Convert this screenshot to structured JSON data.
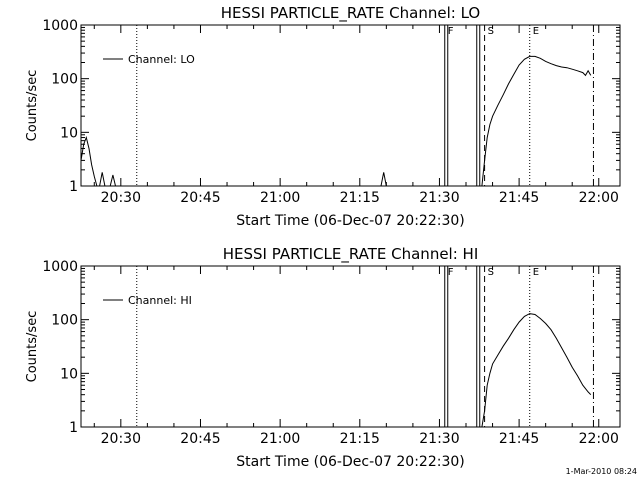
{
  "footer": {
    "timestamp": "1-Mar-2010 08:24"
  },
  "chart_data": [
    {
      "type": "line",
      "title": "HESSI PARTICLE_RATE Channel: LO",
      "xlabel": "Start Time (06-Dec-07 20:22:30)",
      "ylabel": "Counts/sec",
      "yscale": "log",
      "ylim": [
        1,
        1000
      ],
      "xlim": [
        "20:22:30",
        "22:04:00"
      ],
      "xticks": [
        "20:30",
        "20:45",
        "21:00",
        "21:15",
        "21:30",
        "21:45",
        "22:00"
      ],
      "yticks": [
        "1",
        "10",
        "100",
        "1000"
      ],
      "legend": {
        "label": "Channel: LO",
        "position": "top-left"
      },
      "markers": [
        {
          "label": "F",
          "time": "21:31:00"
        },
        {
          "label": "S",
          "time": "21:38:30"
        },
        {
          "label": "E",
          "time": "21:47:00"
        }
      ],
      "series": [
        {
          "name": "Channel: LO",
          "x": [
            "20:22:30",
            "20:23:00",
            "20:23:30",
            "20:24:00",
            "20:24:30",
            "20:25:00",
            "20:25:30",
            "20:26:00",
            "20:26:30",
            "20:27:00",
            "20:27:30",
            "20:28:00",
            "20:28:30",
            "20:29:00",
            "20:29:30",
            "20:30:00",
            "20:30:30",
            "20:31:00",
            "20:31:30",
            "20:32:00",
            "20:32:30",
            "20:33:00",
            "21:19:00",
            "21:19:30",
            "21:20:00",
            "21:38:00",
            "21:38:30",
            "21:39:00",
            "21:39:30",
            "21:40:00",
            "21:41:00",
            "21:42:00",
            "21:43:00",
            "21:44:00",
            "21:45:00",
            "21:46:00",
            "21:47:00",
            "21:48:00",
            "21:49:00",
            "21:50:00",
            "21:51:00",
            "21:52:00",
            "21:53:00",
            "21:54:00",
            "21:55:00",
            "21:56:00",
            "21:57:00",
            "21:57:30",
            "21:58:00",
            "21:58:30"
          ],
          "values": [
            3,
            6,
            8,
            5,
            2.5,
            1.5,
            1,
            1,
            1.8,
            1,
            1,
            1,
            1.6,
            1,
            1,
            1,
            1,
            1,
            1,
            1,
            1,
            1,
            1,
            1.8,
            1,
            1,
            3,
            8,
            14,
            20,
            32,
            50,
            80,
            120,
            180,
            230,
            260,
            260,
            240,
            210,
            190,
            175,
            165,
            160,
            150,
            140,
            130,
            115,
            140,
            115
          ]
        }
      ]
    },
    {
      "type": "line",
      "title": "HESSI PARTICLE_RATE Channel: HI",
      "xlabel": "Start Time (06-Dec-07 20:22:30)",
      "ylabel": "Counts/sec",
      "yscale": "log",
      "ylim": [
        1,
        1000
      ],
      "xlim": [
        "20:22:30",
        "22:04:00"
      ],
      "xticks": [
        "20:30",
        "20:45",
        "21:00",
        "21:15",
        "21:30",
        "21:45",
        "22:00"
      ],
      "yticks": [
        "1",
        "10",
        "100",
        "1000"
      ],
      "legend": {
        "label": "Channel: HI",
        "position": "top-left"
      },
      "markers": [
        {
          "label": "F",
          "time": "21:31:00"
        },
        {
          "label": "S",
          "time": "21:38:30"
        },
        {
          "label": "E",
          "time": "21:47:00"
        }
      ],
      "series": [
        {
          "name": "Channel: HI",
          "x": [
            "21:38:00",
            "21:38:30",
            "21:39:00",
            "21:39:30",
            "21:40:00",
            "21:41:00",
            "21:42:00",
            "21:43:00",
            "21:44:00",
            "21:45:00",
            "21:46:00",
            "21:47:00",
            "21:48:00",
            "21:49:00",
            "21:50:00",
            "21:51:00",
            "21:52:00",
            "21:53:00",
            "21:54:00",
            "21:55:00",
            "21:56:00",
            "21:57:00",
            "21:58:00",
            "21:58:30"
          ],
          "values": [
            1,
            2,
            6,
            10,
            15,
            22,
            32,
            45,
            65,
            90,
            115,
            130,
            125,
            105,
            85,
            65,
            45,
            30,
            20,
            13,
            9,
            6,
            4.5,
            4
          ]
        }
      ]
    }
  ]
}
